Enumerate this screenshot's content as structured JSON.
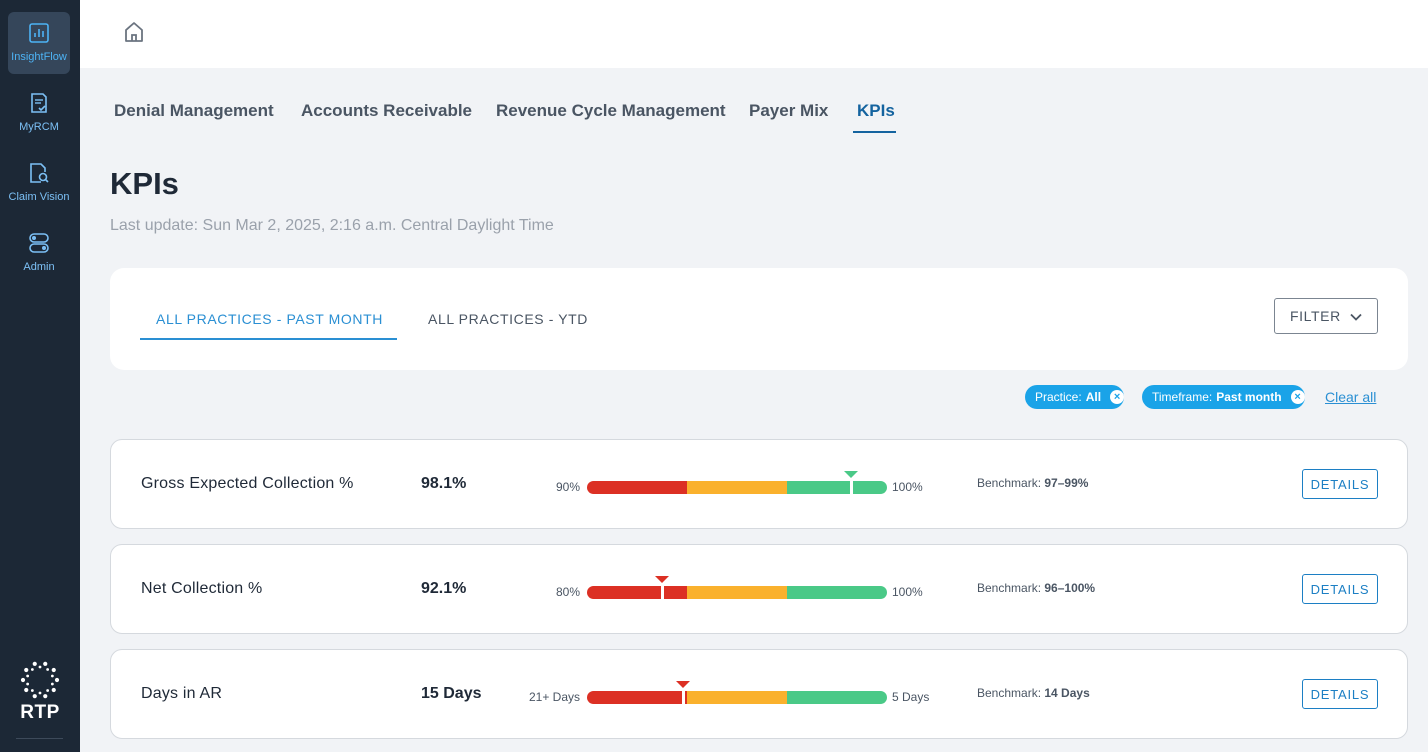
{
  "sidebar": {
    "items": [
      {
        "label": "InsightFlow",
        "icon": "chart-icon",
        "active": true
      },
      {
        "label": "MyRCM",
        "icon": "document-check-icon",
        "active": false
      },
      {
        "label": "Claim Vision",
        "icon": "document-search-icon",
        "active": false
      },
      {
        "label": "Admin",
        "icon": "toggles-icon",
        "active": false
      }
    ],
    "logo_text": "RTP"
  },
  "header": {
    "home_icon": "home-icon"
  },
  "nav_tabs": [
    {
      "label": "Denial Management",
      "active": false
    },
    {
      "label": "Accounts Receivable",
      "active": false
    },
    {
      "label": "Revenue Cycle Management",
      "active": false
    },
    {
      "label": "Payer Mix",
      "active": false
    },
    {
      "label": "KPIs",
      "active": true
    }
  ],
  "page": {
    "title": "KPIs",
    "last_update": "Last update: Sun Mar 2, 2025,  2:16 a.m. Central Daylight Time"
  },
  "sub_tabs": [
    {
      "label": "ALL PRACTICES - PAST MONTH",
      "active": true
    },
    {
      "label": "ALL PRACTICES - YTD",
      "active": false
    }
  ],
  "filter": {
    "label": "FILTER",
    "icon": "chevron-down-icon"
  },
  "chips": [
    {
      "key": "Practice:",
      "value": "All"
    },
    {
      "key": "Timeframe:",
      "value": "Past month"
    }
  ],
  "clear_all": "Clear all",
  "kpis": [
    {
      "name": "Gross Expected Collection %",
      "value": "98.1%",
      "min_label": "90%",
      "max_label": "100%",
      "benchmark_label": "Benchmark:",
      "benchmark_value": "97–99%",
      "details": "DETAILS",
      "marker_fraction": 0.88,
      "marker_color": "#4ac987"
    },
    {
      "name": "Net Collection %",
      "value": "92.1%",
      "min_label": "80%",
      "max_label": "100%",
      "benchmark_label": "Benchmark:",
      "benchmark_value": "96–100%",
      "details": "DETAILS",
      "marker_fraction": 0.25,
      "marker_color": "#dc3024"
    },
    {
      "name": "Days in AR",
      "value": "15 Days",
      "min_label": "21+ Days",
      "max_label": "5 Days",
      "benchmark_label": "Benchmark:",
      "benchmark_value": "14 Days",
      "details": "DETAILS",
      "marker_fraction": 0.32,
      "marker_color": "#dc3024"
    }
  ],
  "colors": {
    "accent": "#2a8fd3",
    "sidebar": "#1c2836",
    "red": "#dc3024",
    "orange": "#fab12d",
    "green": "#4ac987"
  }
}
